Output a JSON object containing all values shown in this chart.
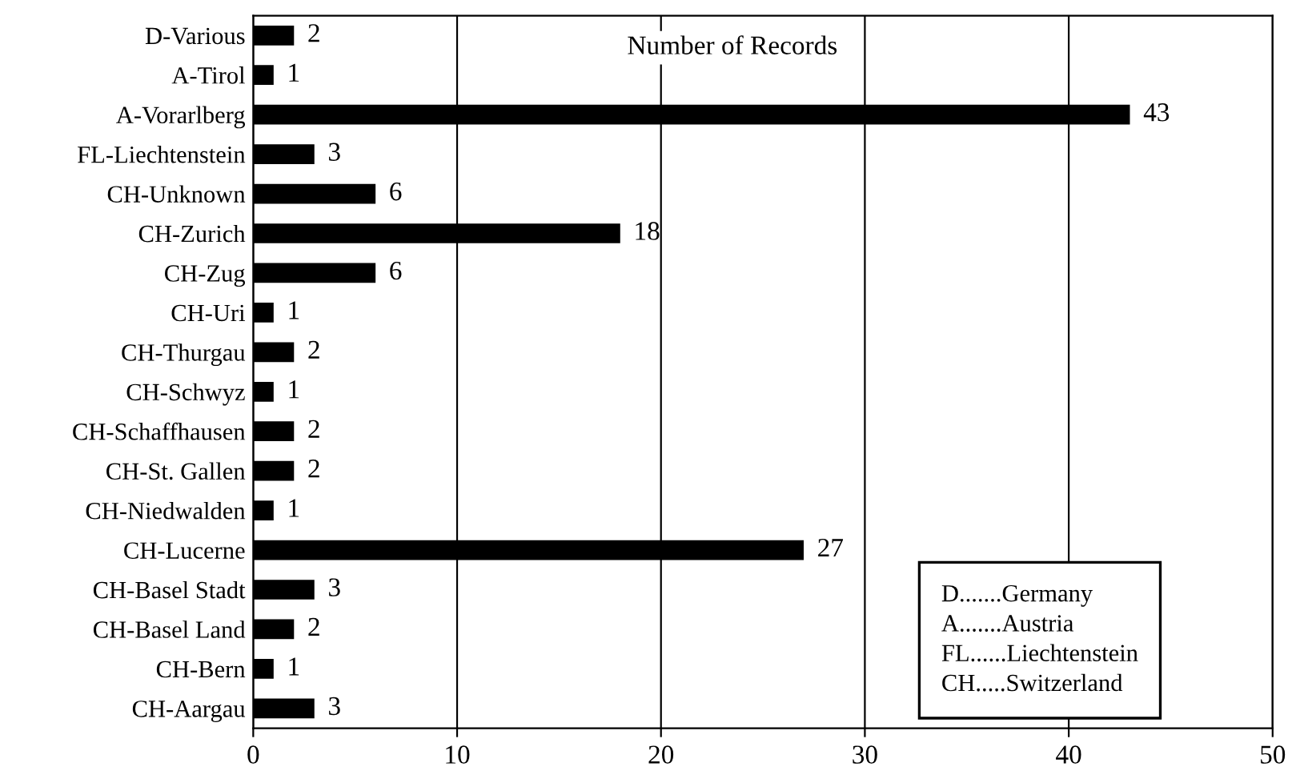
{
  "chart_data": {
    "type": "bar",
    "orientation": "horizontal",
    "title": "Number of Records",
    "categories": [
      "D-Various",
      "A-Tirol",
      "A-Vorarlberg",
      "FL-Liechtenstein",
      "CH-Unknown",
      "CH-Zurich",
      "CH-Zug",
      "CH-Uri",
      "CH-Thurgau",
      "CH-Schwyz",
      "CH-Schaffhausen",
      "CH-St. Gallen",
      "CH-Niedwalden",
      "CH-Lucerne",
      "CH-Basel Stadt",
      "CH-Basel Land",
      "CH-Bern",
      "CH-Aargau"
    ],
    "values": [
      2,
      1,
      43,
      3,
      6,
      18,
      6,
      1,
      2,
      1,
      2,
      2,
      1,
      27,
      3,
      2,
      1,
      3
    ],
    "color": "#000000",
    "xlim": [
      0,
      50
    ],
    "xticks": [
      0,
      10,
      20,
      30,
      40,
      50
    ],
    "grid": "x",
    "data_labels": true,
    "annotations": [
      "D.......Germany",
      "A.......Austria",
      "FL......Liechtenstein",
      "CH.....Switzerland"
    ]
  }
}
